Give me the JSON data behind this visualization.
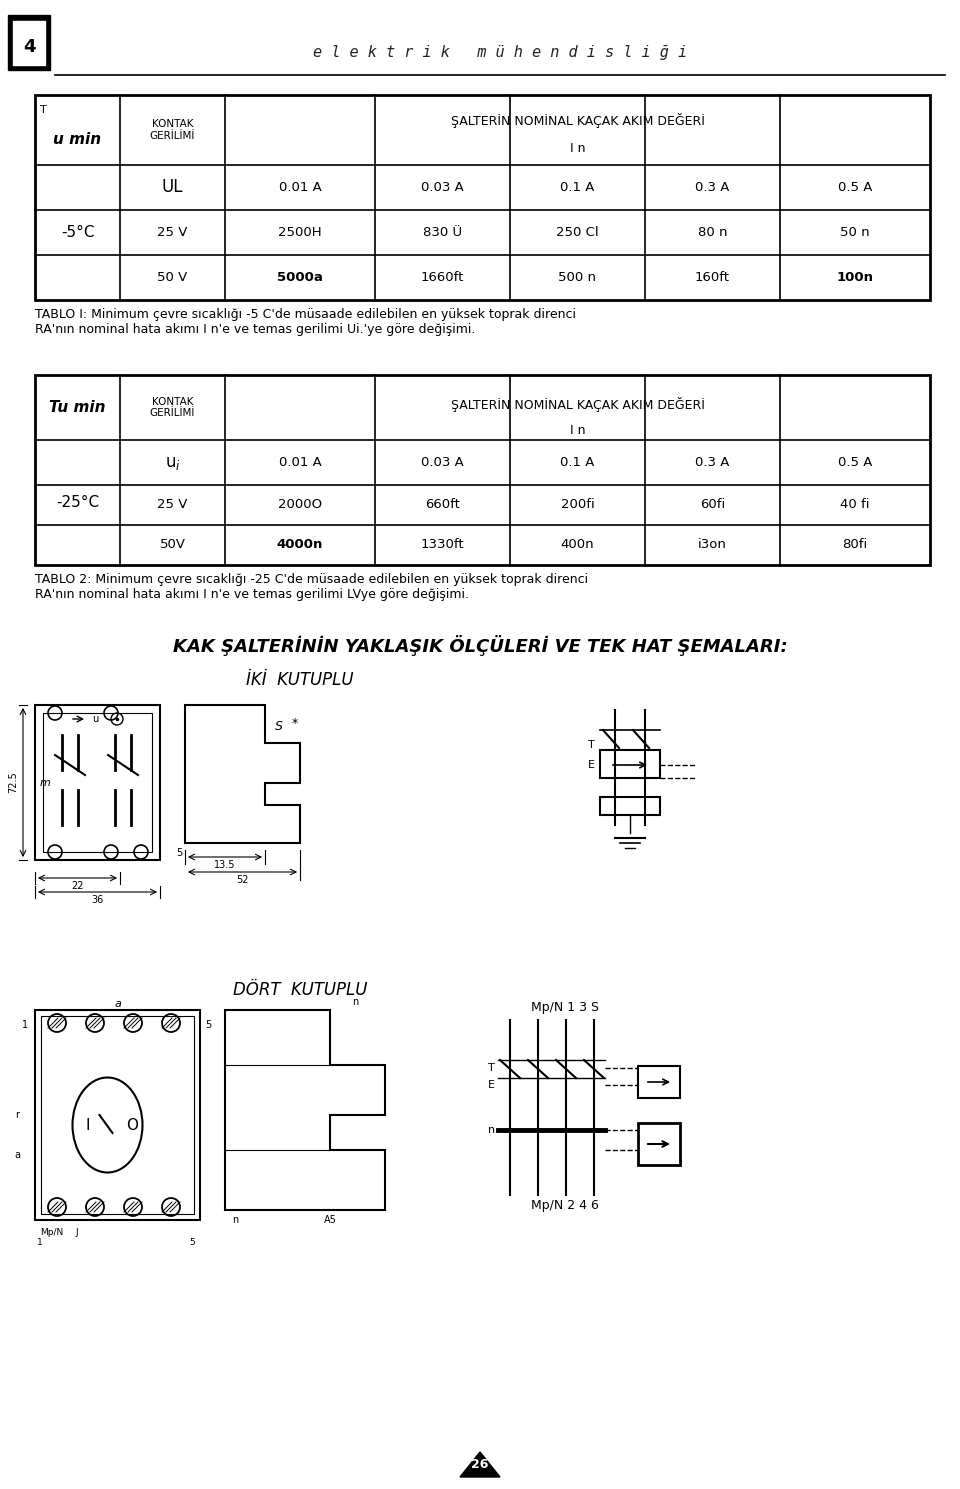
{
  "header_text": "e l e k t r i k   m ü h e n d i s l i ğ i",
  "bg_color": "#ffffff",
  "table1": {
    "col1_header": "KONTAK\nGERİLİMİ",
    "col2_header_line1": "ŞALTERİN NOMİNAL KAÇAK AKIM DEĞERİ",
    "col2_header_line2": "I n",
    "corner_label_top": "T",
    "corner_label_bottom": "u min",
    "temp_label": "-5°C",
    "row_ul": [
      "UL",
      "0.01 A",
      "0.03 A",
      "0.1 A",
      "0.3 A",
      "0.5 A"
    ],
    "row_25v": [
      "25 V",
      "2500H",
      "830 Ü",
      "250 Cl",
      "80 n",
      "50 n"
    ],
    "row_50v": [
      "50 V",
      "5000a",
      "1660ft",
      "500 n",
      "160ft",
      "100n"
    ],
    "caption": "TABLO I: Minimum çevre sıcaklığı -5 C'de müsaade edilebilen en yüksek toprak direnci\nRA'nın nominal hata akımı I n'e ve temas gerilimi Ui.'ye göre değişimi."
  },
  "table2": {
    "col1_header": "KONTAK\nGERİLİMİ",
    "col2_header_line1": "ŞALTERİN NOMİNAL KAÇAK AKIM DEĞERİ",
    "col2_header_line2": "I n",
    "corner_label": "Tu min",
    "temp_label": "-25°C",
    "row_ul": [
      "u_i",
      "0.01 A",
      "0.03 A",
      "0.1 A",
      "0.3 A",
      "0.5 A"
    ],
    "row_25v": [
      "25 V",
      "2000O",
      "660ft",
      "200fi",
      "60fi",
      "40 fi"
    ],
    "row_50v": [
      "50V",
      "4000n",
      "1330ft",
      "400n",
      "i3on",
      "80fi"
    ],
    "caption": "TABLO 2: Minimum çevre sıcaklığı -25 C'de müsaade edilebilen en yüksek toprak direnci\nRA'nın nominal hata akımı I n'e ve temas gerilimi LVye göre değişimi."
  },
  "section_title": "KAK ŞALTERİNİN YAKLAŞIK ÖLÇÜLERİ VE TEK HAT ŞEMALARI:",
  "iki_kutuplu": "İKİ  KUTUPLU",
  "dort_kutuplu": "DÖRT  KUTUPLU",
  "page_number": "26"
}
